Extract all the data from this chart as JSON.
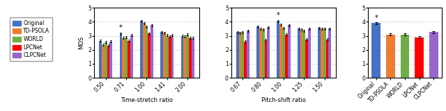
{
  "colors": {
    "Original": "#4472C4",
    "TD-PSOLA": "#ED7D31",
    "WORLD": "#70AD47",
    "LPCNet": "#FF0000",
    "CLPCNet": "#9966CC"
  },
  "legend_order": [
    "Original",
    "TD-PSOLA",
    "WORLD",
    "LPCNet",
    "CLPCNet"
  ],
  "subplot1": {
    "xlabel": "Time-stretch ratio",
    "ylabel": "MOS",
    "xticks": [
      "0.50",
      "0.71",
      "1.00",
      "1.41",
      "2.00"
    ],
    "data": {
      "Original": [
        2.65,
        3.15,
        4.05,
        3.25,
        3.0
      ],
      "TD-PSOLA": [
        2.35,
        2.85,
        3.9,
        3.2,
        2.95
      ],
      "WORLD": [
        2.55,
        2.9,
        3.65,
        3.05,
        3.1
      ],
      "LPCNet": [
        2.3,
        2.65,
        3.15,
        2.95,
        2.85
      ],
      "CLPCNet": [
        2.6,
        3.05,
        3.75,
        3.05,
        2.85
      ]
    },
    "errors": {
      "Original": [
        0.07,
        0.09,
        0.07,
        0.08,
        0.08
      ],
      "TD-PSOLA": [
        0.07,
        0.08,
        0.08,
        0.08,
        0.08
      ],
      "WORLD": [
        0.07,
        0.08,
        0.08,
        0.08,
        0.08
      ],
      "LPCNet": [
        0.07,
        0.08,
        0.08,
        0.08,
        0.08
      ],
      "CLPCNet": [
        0.07,
        0.08,
        0.08,
        0.08,
        0.08
      ]
    },
    "star_group": 1,
    "star_method": "Original",
    "ylim": [
      0,
      5
    ]
  },
  "subplot2": {
    "xlabel": "Pitch-shift ratio",
    "ylabel": "",
    "xticks": [
      "0.67",
      "0.80",
      "1.00",
      "1.25",
      "1.50"
    ],
    "data": {
      "Original": [
        3.25,
        3.65,
        4.05,
        3.5,
        3.55
      ],
      "TD-PSOLA": [
        3.2,
        3.5,
        3.8,
        3.45,
        3.5
      ],
      "WORLD": [
        3.25,
        3.45,
        3.55,
        3.35,
        3.5
      ],
      "LPCNet": [
        2.6,
        2.7,
        3.1,
        2.75,
        2.75
      ],
      "CLPCNet": [
        3.35,
        3.6,
        3.75,
        3.5,
        3.5
      ]
    },
    "errors": {
      "Original": [
        0.08,
        0.08,
        0.08,
        0.08,
        0.08
      ],
      "TD-PSOLA": [
        0.08,
        0.08,
        0.08,
        0.08,
        0.08
      ],
      "WORLD": [
        0.08,
        0.08,
        0.08,
        0.08,
        0.08
      ],
      "LPCNet": [
        0.08,
        0.08,
        0.08,
        0.08,
        0.08
      ],
      "CLPCNet": [
        0.08,
        0.08,
        0.08,
        0.08,
        0.08
      ]
    },
    "star_group": 2,
    "star_method": "Original",
    "ylim": [
      0,
      5
    ]
  },
  "subplot3": {
    "xlabel": "",
    "ylabel": "",
    "xticks": [
      "Original",
      "TD-PSOLA",
      "WORLD",
      "LPCNet",
      "CLPCNet"
    ],
    "data": {
      "Original": [
        3.9
      ],
      "TD-PSOLA": [
        3.1
      ],
      "WORLD": [
        3.1
      ],
      "LPCNet": [
        2.9
      ],
      "CLPCNet": [
        3.25
      ]
    },
    "errors": {
      "Original": [
        0.06
      ],
      "TD-PSOLA": [
        0.06
      ],
      "WORLD": [
        0.06
      ],
      "LPCNet": [
        0.06
      ],
      "CLPCNet": [
        0.06
      ]
    },
    "star_group": 0,
    "star_method": "Original",
    "ylim": [
      0,
      5
    ]
  }
}
